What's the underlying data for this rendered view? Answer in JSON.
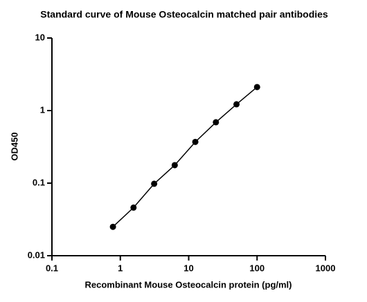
{
  "chart_data": {
    "type": "line",
    "title": "Standard curve of Mouse Osteocalcin matched pair antibodies",
    "x_label": "Recombinant Mouse Osteocalcin protein (pg/ml)",
    "y_label": "OD450",
    "x": [
      0.78,
      1.56,
      3.125,
      6.25,
      12.5,
      25,
      50,
      100
    ],
    "series": [
      {
        "name": "OD450",
        "color": "#000000",
        "values": [
          0.025,
          0.046,
          0.098,
          0.177,
          0.37,
          0.69,
          1.22,
          2.11
        ]
      }
    ],
    "x_scale": "log",
    "y_scale": "log",
    "xlim": [
      0.1,
      1000
    ],
    "xticks": [
      0.1,
      1,
      10,
      100,
      1000
    ],
    "ylim": [
      0.01,
      10
    ],
    "yticks": [
      0.01,
      0.1,
      1,
      10
    ],
    "markers": true,
    "grid": false
  }
}
